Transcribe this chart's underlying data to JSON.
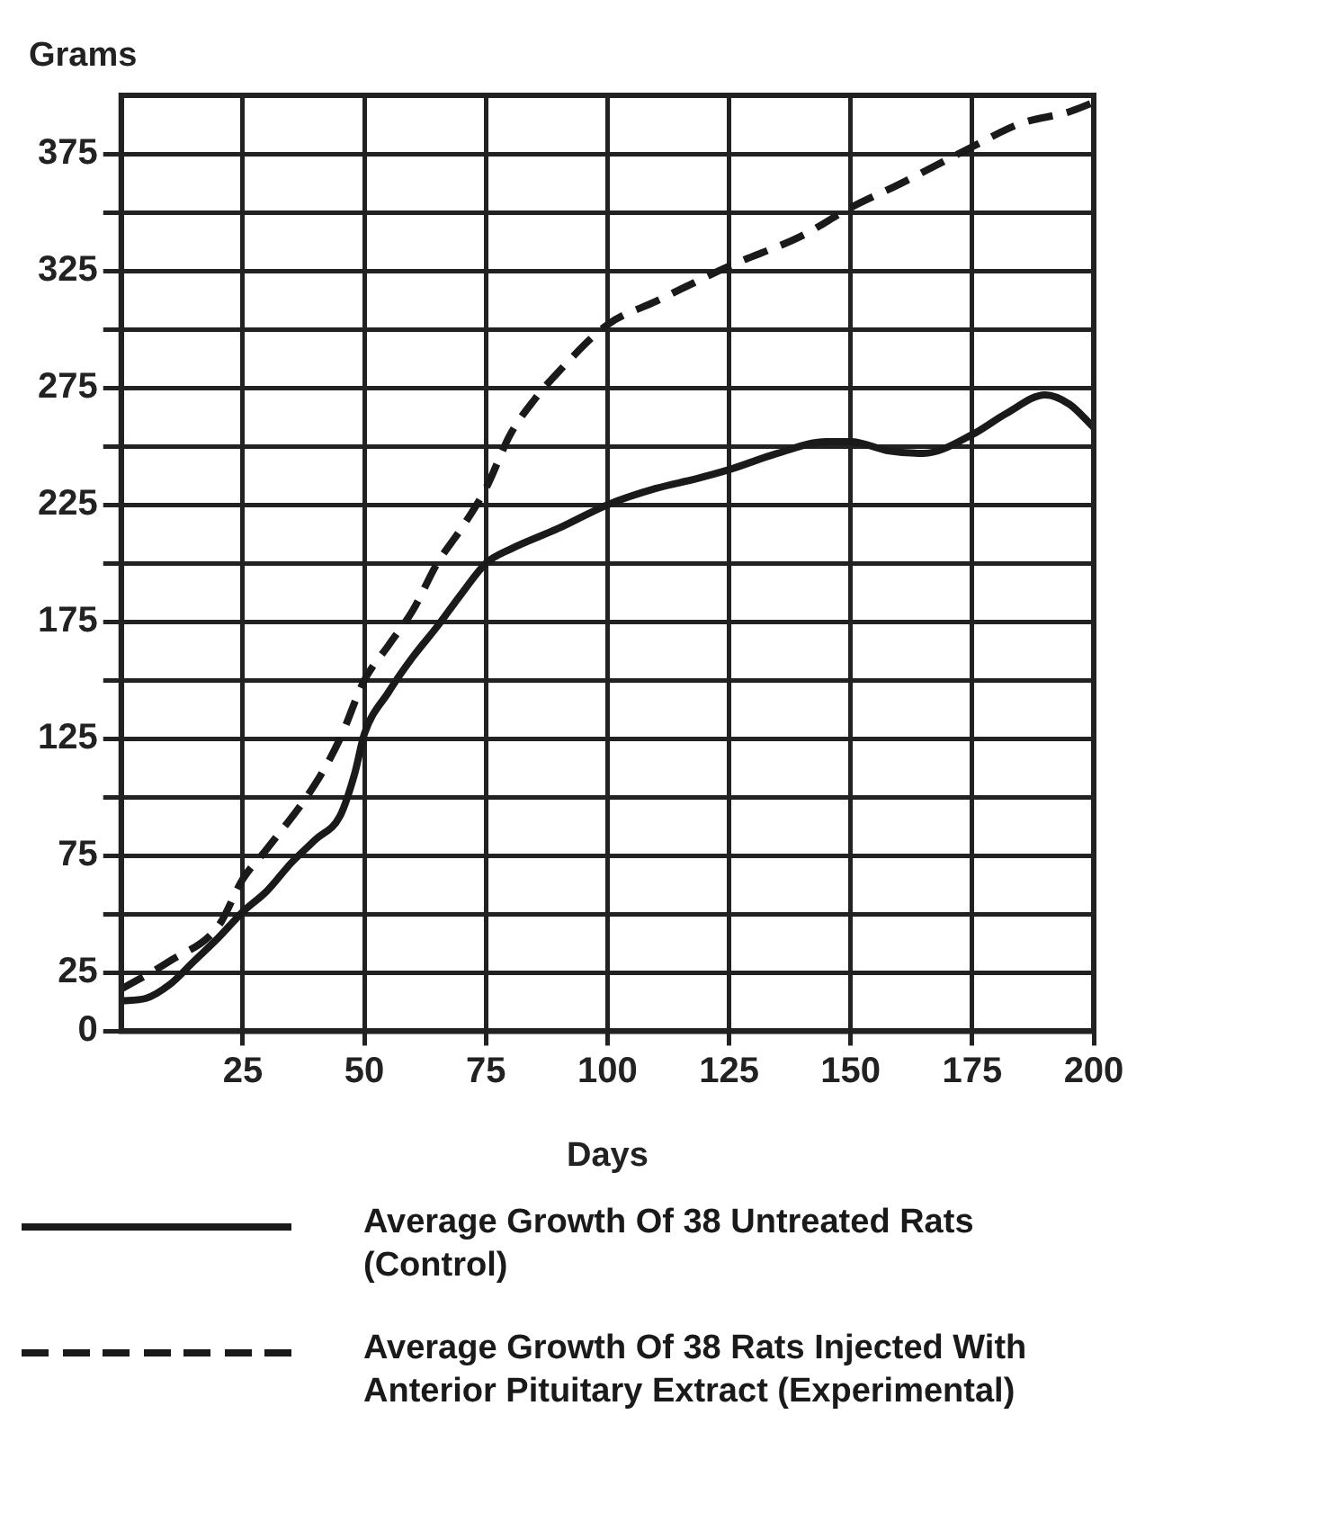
{
  "chart_data": {
    "type": "line",
    "xlabel": "Days",
    "ylabel": "Grams",
    "xlim": [
      0,
      200
    ],
    "ylim": [
      0,
      400
    ],
    "xticks": [
      25,
      50,
      75,
      100,
      125,
      150,
      175,
      200
    ],
    "yticks": [
      0,
      25,
      {
        "value": 50,
        "label": null
      },
      75,
      {
        "value": 100,
        "label": null
      },
      125,
      {
        "value": 150,
        "label": null
      },
      175,
      {
        "value": 200,
        "label": null
      },
      225,
      {
        "value": 250,
        "label": null
      },
      275,
      {
        "value": 300,
        "label": null
      },
      325,
      {
        "value": 350,
        "label": null
      },
      375
    ],
    "grid": true,
    "legend": "bottom",
    "marker": "none",
    "series": [
      {
        "name": "Average Growth Of 38 Untreated Rats (Control)",
        "color": "#1a1a1a",
        "line_style": "solid",
        "x": [
          0,
          5,
          10,
          15,
          20,
          25,
          30,
          35,
          40,
          45,
          48,
          50,
          55,
          60,
          65,
          70,
          75,
          80,
          90,
          100,
          110,
          118,
          125,
          135,
          145,
          150,
          158,
          165,
          175,
          182,
          190,
          195,
          200
        ],
        "values": [
          13,
          14,
          20,
          30,
          40,
          51,
          60,
          72,
          82,
          92,
          110,
          127,
          145,
          160,
          173,
          187,
          200,
          206,
          215,
          225,
          232,
          236,
          240,
          247,
          252,
          252,
          248,
          247,
          255,
          264,
          272,
          268,
          258
        ]
      },
      {
        "name": "Average Growth Of 38 Rats Injected With Anterior Pituitary Extract (Experimental)",
        "color": "#1a1a1a",
        "line_style": "dashed",
        "x": [
          0,
          10,
          20,
          25,
          30,
          40,
          45,
          50,
          55,
          60,
          65,
          70,
          75,
          80,
          85,
          90,
          100,
          110,
          125,
          140,
          150,
          160,
          175,
          185,
          195,
          200
        ],
        "values": [
          18,
          30,
          45,
          65,
          78,
          106,
          125,
          150,
          165,
          180,
          200,
          215,
          232,
          255,
          270,
          282,
          302,
          312,
          327,
          340,
          352,
          362,
          378,
          388,
          393,
          397
        ]
      }
    ]
  }
}
